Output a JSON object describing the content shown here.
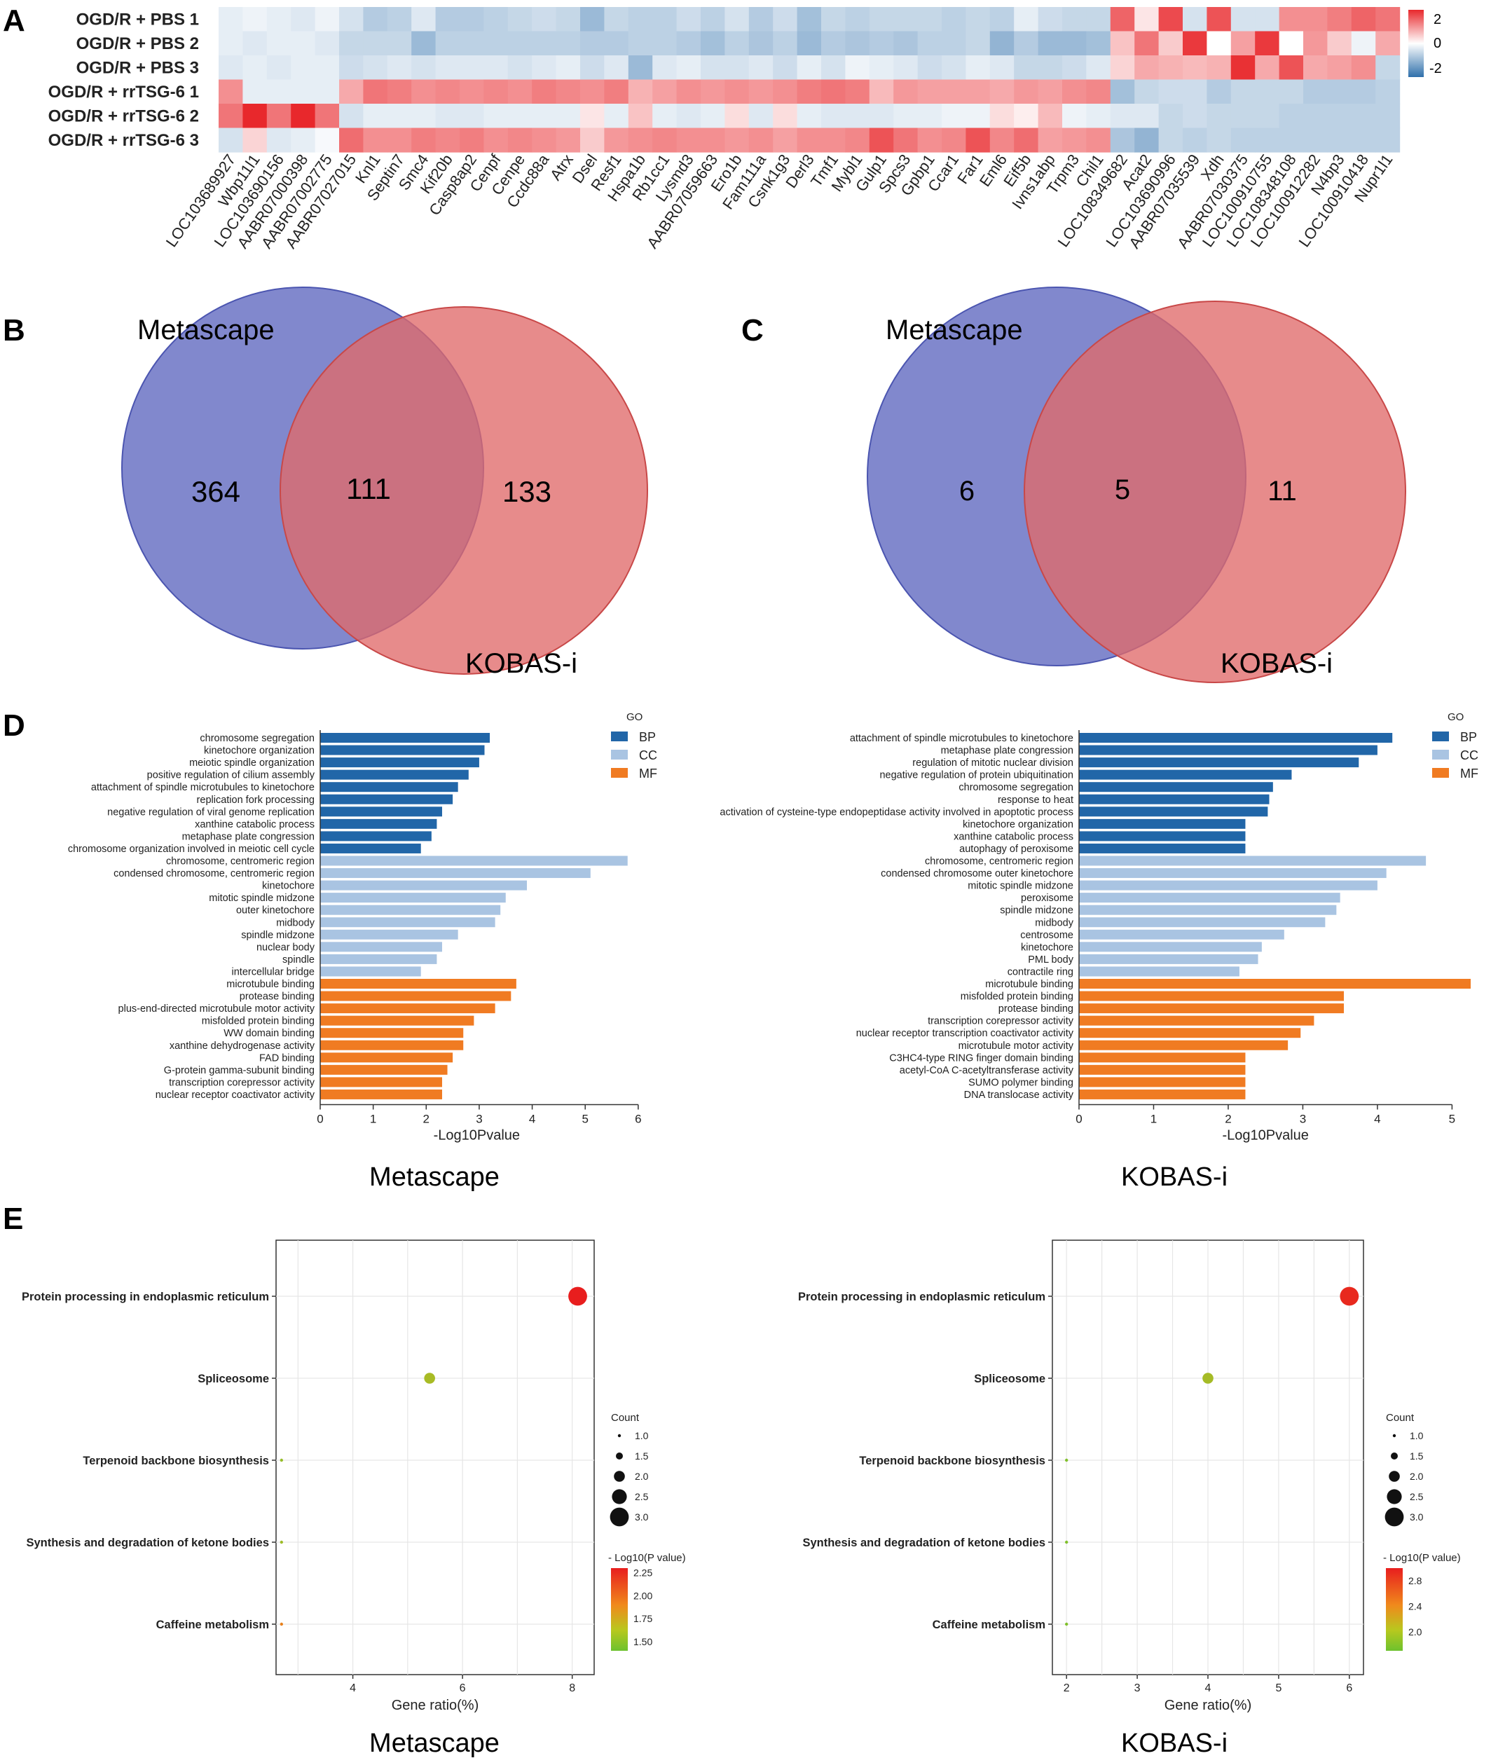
{
  "panels": {
    "A": "A",
    "B": "B",
    "C": "C",
    "D": "D",
    "E": "E"
  },
  "colors": {
    "heat_low": "#2f6fab",
    "heat_mid": "#ffffff",
    "heat_high": "#e8282c",
    "venn_blue": "#6f78c6",
    "venn_red": "#e47878",
    "venn_overlap": "#a44a6c",
    "bp": "#2166a8",
    "cc": "#a9c4e2",
    "mf": "#f07b22"
  },
  "chart_data": [
    {
      "type": "heatmap",
      "rows": [
        "OGD/R + PBS 1",
        "OGD/R + PBS 2",
        "OGD/R + PBS 3",
        "OGD/R + rrTSG-6 1",
        "OGD/R + rrTSG-6 2",
        "OGD/R + rrTSG-6 3"
      ],
      "columns": [
        "LOC103689927",
        "Wbp11l1",
        "LOC103690156",
        "AABR07000398",
        "AABR07002775",
        "AABR07027015",
        "Knl1",
        "Septin7",
        "Smc4",
        "Kif20b",
        "Casp8ap2",
        "Cenpf",
        "Cenpe",
        "Ccdc88a",
        "Atrx",
        "Dsel",
        "Resf1",
        "Hspa1b",
        "Rb1cc1",
        "Lysmd3",
        "AABR07059663",
        "Ero1b",
        "Fam111a",
        "Csnk1g3",
        "Derl3",
        "Tmf1",
        "Mybl1",
        "Gulp1",
        "Spcs3",
        "Gpbp1",
        "Ccar1",
        "Far1",
        "Eml6",
        "Eif5b",
        "Ivns1abp",
        "Trpm3",
        "Chil1",
        "LOC108349682",
        "Acat2",
        "LOC103690996",
        "AABR07035539",
        "Xdh",
        "AABR07030375",
        "LOC100910755",
        "LOC108348108",
        "LOC100912282",
        "N4bp3",
        "LOC100910418",
        "Nupr1l1"
      ],
      "values": [
        [
          -0.3,
          -0.2,
          -0.3,
          -0.4,
          -0.2,
          -0.5,
          -0.9,
          -0.8,
          -0.4,
          -0.9,
          -0.9,
          -0.8,
          -0.7,
          -0.6,
          -0.7,
          -1.2,
          -0.7,
          -0.8,
          -0.8,
          -0.6,
          -0.8,
          -0.5,
          -0.9,
          -0.6,
          -1.1,
          -0.7,
          -0.8,
          -0.7,
          -0.7,
          -0.7,
          -0.8,
          -0.7,
          -0.8,
          -0.3,
          -0.6,
          -0.7,
          -0.7,
          1.8,
          0.3,
          2.1,
          -0.5,
          2.0,
          -0.5,
          -0.5,
          1.3,
          1.3,
          1.5,
          1.8,
          1.6
        ],
        [
          -0.3,
          -0.4,
          -0.3,
          -0.3,
          -0.4,
          -0.7,
          -0.7,
          -0.7,
          -1.2,
          -0.8,
          -0.8,
          -0.8,
          -0.8,
          -0.8,
          -0.8,
          -0.9,
          -0.9,
          -0.8,
          -0.8,
          -0.9,
          -1.1,
          -0.8,
          -1.0,
          -0.8,
          -1.2,
          -0.9,
          -1.0,
          -0.9,
          -1.0,
          -0.8,
          -0.8,
          -0.7,
          -1.3,
          -0.9,
          -1.2,
          -1.2,
          -1.1,
          0.7,
          1.6,
          0.6,
          2.3,
          0.0,
          1.1,
          2.3,
          0.0,
          1.2,
          0.6,
          -0.2,
          1.0
        ],
        [
          -0.4,
          -0.3,
          -0.4,
          -0.3,
          -0.3,
          -0.6,
          -0.5,
          -0.4,
          -0.5,
          -0.4,
          -0.4,
          -0.4,
          -0.5,
          -0.4,
          -0.3,
          -0.6,
          -0.4,
          -1.2,
          -0.4,
          -0.3,
          -0.5,
          -0.5,
          -0.4,
          -0.6,
          -0.3,
          -0.5,
          -0.2,
          -0.3,
          -0.4,
          -0.6,
          -0.5,
          -0.3,
          -0.4,
          -0.7,
          -0.7,
          -0.6,
          -0.4,
          0.5,
          1.0,
          0.9,
          0.8,
          0.9,
          2.4,
          1.0,
          2.0,
          1.0,
          1.1,
          1.3,
          -0.7
        ],
        [
          1.3,
          -0.3,
          -0.3,
          -0.3,
          -0.3,
          1.0,
          1.6,
          1.5,
          1.3,
          1.4,
          1.3,
          1.4,
          1.3,
          1.5,
          1.4,
          1.3,
          1.5,
          0.9,
          1.1,
          1.3,
          1.2,
          1.3,
          1.2,
          1.3,
          1.5,
          1.6,
          1.5,
          0.8,
          1.2,
          1.1,
          1.1,
          1.1,
          1.0,
          1.2,
          1.1,
          1.3,
          1.4,
          -1.1,
          -0.7,
          -0.6,
          -0.6,
          -0.9,
          -0.7,
          -0.7,
          -0.7,
          -0.9,
          -0.9,
          -0.9,
          -0.8
        ],
        [
          1.6,
          2.6,
          1.6,
          2.6,
          1.6,
          -0.5,
          -0.3,
          -0.3,
          -0.3,
          -0.4,
          -0.4,
          -0.3,
          -0.3,
          -0.3,
          -0.3,
          0.3,
          -0.3,
          0.7,
          -0.3,
          -0.4,
          -0.3,
          0.4,
          -0.4,
          0.4,
          -0.3,
          -0.4,
          -0.4,
          -0.4,
          -0.3,
          -0.3,
          -0.2,
          -0.2,
          0.4,
          0.2,
          0.8,
          -0.2,
          -0.3,
          -0.4,
          -0.4,
          -0.7,
          -0.6,
          -0.7,
          -0.7,
          -0.7,
          -0.8,
          -0.8,
          -0.8,
          -0.8,
          -0.8
        ],
        [
          -0.5,
          0.5,
          -0.4,
          -0.3,
          -0.1,
          1.7,
          1.3,
          1.3,
          1.5,
          1.4,
          1.5,
          1.3,
          1.4,
          1.3,
          1.2,
          0.6,
          1.2,
          1.3,
          1.4,
          1.3,
          1.3,
          1.2,
          1.3,
          1.1,
          1.3,
          1.3,
          1.4,
          2.0,
          1.6,
          1.3,
          1.4,
          2.0,
          1.4,
          1.7,
          1.1,
          1.2,
          1.3,
          -1.0,
          -1.3,
          -0.7,
          -0.8,
          -0.7,
          -0.8,
          -0.8,
          -0.8,
          -0.8,
          -0.8,
          -0.8,
          -0.8
        ]
      ],
      "legend_ticks": [
        "2",
        "0",
        "-2"
      ]
    },
    {
      "type": "venn",
      "set_a": "Metascape",
      "set_b": "KOBAS-i",
      "only_a": "364",
      "both": "111",
      "only_b": "133"
    },
    {
      "type": "venn",
      "set_a": "Metascape",
      "set_b": "KOBAS-i",
      "only_a": "6",
      "both": "5",
      "only_b": "11"
    },
    {
      "type": "bar",
      "orientation": "horizontal",
      "caption": "Metascape",
      "xlabel": "-Log10Pvalue",
      "xlim": [
        0,
        6.2
      ],
      "xticks": [
        "0",
        "1",
        "2",
        "3",
        "4",
        "5",
        "6"
      ],
      "legend_title": "GO",
      "legend": [
        "BP",
        "CC",
        "MF"
      ],
      "bars": [
        {
          "label": "chromosome segregation",
          "value": 3.2,
          "group": "BP"
        },
        {
          "label": "kinetochore organization",
          "value": 3.1,
          "group": "BP"
        },
        {
          "label": "meiotic spindle organization",
          "value": 3.0,
          "group": "BP"
        },
        {
          "label": "positive regulation of cilium assembly",
          "value": 2.8,
          "group": "BP"
        },
        {
          "label": "attachment of spindle microtubules to kinetochore",
          "value": 2.6,
          "group": "BP"
        },
        {
          "label": "replication fork processing",
          "value": 2.5,
          "group": "BP"
        },
        {
          "label": "negative regulation of viral genome replication",
          "value": 2.3,
          "group": "BP"
        },
        {
          "label": "xanthine catabolic process",
          "value": 2.2,
          "group": "BP"
        },
        {
          "label": "metaphase plate congression",
          "value": 2.1,
          "group": "BP"
        },
        {
          "label": "chromosome organization involved in meiotic cell cycle",
          "value": 1.9,
          "group": "BP"
        },
        {
          "label": "chromosome, centromeric region",
          "value": 5.8,
          "group": "CC"
        },
        {
          "label": "condensed chromosome, centromeric region",
          "value": 5.1,
          "group": "CC"
        },
        {
          "label": "kinetochore",
          "value": 3.9,
          "group": "CC"
        },
        {
          "label": "mitotic spindle midzone",
          "value": 3.5,
          "group": "CC"
        },
        {
          "label": "outer kinetochore",
          "value": 3.4,
          "group": "CC"
        },
        {
          "label": "midbody",
          "value": 3.3,
          "group": "CC"
        },
        {
          "label": "spindle midzone",
          "value": 2.6,
          "group": "CC"
        },
        {
          "label": "nuclear body",
          "value": 2.3,
          "group": "CC"
        },
        {
          "label": "spindle",
          "value": 2.2,
          "group": "CC"
        },
        {
          "label": "intercellular bridge",
          "value": 1.9,
          "group": "CC"
        },
        {
          "label": "microtubule binding",
          "value": 3.7,
          "group": "MF"
        },
        {
          "label": "protease binding",
          "value": 3.6,
          "group": "MF"
        },
        {
          "label": "plus-end-directed microtubule motor activity",
          "value": 3.3,
          "group": "MF"
        },
        {
          "label": "misfolded protein binding",
          "value": 2.9,
          "group": "MF"
        },
        {
          "label": "WW domain binding",
          "value": 2.7,
          "group": "MF"
        },
        {
          "label": "xanthine dehydrogenase activity",
          "value": 2.7,
          "group": "MF"
        },
        {
          "label": "FAD binding",
          "value": 2.5,
          "group": "MF"
        },
        {
          "label": "G-protein gamma-subunit binding",
          "value": 2.4,
          "group": "MF"
        },
        {
          "label": "transcription corepressor activity",
          "value": 2.3,
          "group": "MF"
        },
        {
          "label": "nuclear receptor coactivator activity",
          "value": 2.3,
          "group": "MF"
        }
      ]
    },
    {
      "type": "bar",
      "orientation": "horizontal",
      "caption": "KOBAS-i",
      "xlabel": "-Log10Pvalue",
      "xlim": [
        0,
        5.25
      ],
      "xticks": [
        "0",
        "1",
        "2",
        "3",
        "4",
        "5"
      ],
      "legend_title": "GO",
      "legend": [
        "BP",
        "CC",
        "MF"
      ],
      "bars": [
        {
          "label": "attachment of spindle microtubules to kinetochore",
          "value": 4.2,
          "group": "BP"
        },
        {
          "label": "metaphase plate congression",
          "value": 4.0,
          "group": "BP"
        },
        {
          "label": "regulation of mitotic nuclear division",
          "value": 3.75,
          "group": "BP"
        },
        {
          "label": "negative regulation of protein ubiquitination",
          "value": 2.85,
          "group": "BP"
        },
        {
          "label": "chromosome segregation",
          "value": 2.6,
          "group": "BP"
        },
        {
          "label": "response to heat",
          "value": 2.55,
          "group": "BP"
        },
        {
          "label": "activation of cysteine-type endopeptidase activity involved in apoptotic process",
          "value": 2.53,
          "group": "BP"
        },
        {
          "label": "kinetochore organization",
          "value": 2.23,
          "group": "BP"
        },
        {
          "label": "xanthine catabolic process",
          "value": 2.23,
          "group": "BP"
        },
        {
          "label": "autophagy of peroxisome",
          "value": 2.23,
          "group": "BP"
        },
        {
          "label": "chromosome, centromeric region",
          "value": 4.65,
          "group": "CC"
        },
        {
          "label": "condensed chromosome outer kinetochore",
          "value": 4.12,
          "group": "CC"
        },
        {
          "label": "mitotic spindle midzone",
          "value": 4.0,
          "group": "CC"
        },
        {
          "label": "peroxisome",
          "value": 3.5,
          "group": "CC"
        },
        {
          "label": "spindle midzone",
          "value": 3.45,
          "group": "CC"
        },
        {
          "label": "midbody",
          "value": 3.3,
          "group": "CC"
        },
        {
          "label": "centrosome",
          "value": 2.75,
          "group": "CC"
        },
        {
          "label": "kinetochore",
          "value": 2.45,
          "group": "CC"
        },
        {
          "label": "PML body",
          "value": 2.4,
          "group": "CC"
        },
        {
          "label": "contractile ring",
          "value": 2.15,
          "group": "CC"
        },
        {
          "label": "microtubule binding",
          "value": 5.25,
          "group": "MF"
        },
        {
          "label": "misfolded protein binding",
          "value": 3.55,
          "group": "MF"
        },
        {
          "label": "protease binding",
          "value": 3.55,
          "group": "MF"
        },
        {
          "label": "transcription corepressor activity",
          "value": 3.15,
          "group": "MF"
        },
        {
          "label": "nuclear receptor transcription coactivator activity",
          "value": 2.97,
          "group": "MF"
        },
        {
          "label": "microtubule motor activity",
          "value": 2.8,
          "group": "MF"
        },
        {
          "label": "C3HC4-type RING finger domain binding",
          "value": 2.23,
          "group": "MF"
        },
        {
          "label": "acetyl-CoA C-acetyltransferase activity",
          "value": 2.23,
          "group": "MF"
        },
        {
          "label": "SUMO polymer binding",
          "value": 2.23,
          "group": "MF"
        },
        {
          "label": "DNA translocase activity",
          "value": 2.23,
          "group": "MF"
        }
      ]
    },
    {
      "type": "scatter",
      "caption": "Metascape",
      "xlabel": "Gene ratio(%)",
      "xlim": [
        2.6,
        8.4
      ],
      "xticks": [
        4,
        6,
        8
      ],
      "categories": [
        "Protein processing in endoplasmic reticulum",
        "Spliceosome",
        "Terpenoid backbone biosynthesis",
        "Synthesis and degradation of ketone bodies",
        "Caffeine metabolism"
      ],
      "points": [
        {
          "category": "Protein processing in endoplasmic reticulum",
          "x": 8.1,
          "count": 3,
          "neglog10p": 2.3
        },
        {
          "category": "Spliceosome",
          "x": 5.4,
          "count": 2,
          "neglog10p": 1.62
        },
        {
          "category": "Terpenoid backbone biosynthesis",
          "x": 2.7,
          "count": 1,
          "neglog10p": 1.55
        },
        {
          "category": "Synthesis and degradation of ketone bodies",
          "x": 2.7,
          "count": 1,
          "neglog10p": 1.58
        },
        {
          "category": "Caffeine metabolism",
          "x": 2.7,
          "count": 1,
          "neglog10p": 2.0
        }
      ],
      "size_legend_title": "Count",
      "size_legend": [
        "1.0",
        "1.5",
        "2.0",
        "2.5",
        "3.0"
      ],
      "color_legend_title": "- Log10(P value)",
      "color_legend": [
        "2.25",
        "2.00",
        "1.75",
        "1.50"
      ],
      "color_range": [
        1.4,
        2.3
      ]
    },
    {
      "type": "scatter",
      "caption": "KOBAS-i",
      "xlabel": "Gene ratio(%)",
      "xlim": [
        1.8,
        6.2
      ],
      "xticks": [
        2,
        3,
        4,
        5,
        6
      ],
      "categories": [
        "Protein processing in endoplasmic reticulum",
        "Spliceosome",
        "Terpenoid backbone biosynthesis",
        "Synthesis and degradation of ketone bodies",
        "Caffeine metabolism"
      ],
      "points": [
        {
          "category": "Protein processing in endoplasmic reticulum",
          "x": 6.0,
          "count": 3,
          "neglog10p": 2.95
        },
        {
          "category": "Spliceosome",
          "x": 4.0,
          "count": 2,
          "neglog10p": 2.0
        },
        {
          "category": "Terpenoid backbone biosynthesis",
          "x": 2.0,
          "count": 1,
          "neglog10p": 1.8
        },
        {
          "category": "Synthesis and degradation of ketone bodies",
          "x": 2.0,
          "count": 1,
          "neglog10p": 1.8
        },
        {
          "category": "Caffeine metabolism",
          "x": 2.0,
          "count": 1,
          "neglog10p": 1.8
        }
      ],
      "size_legend_title": "Count",
      "size_legend": [
        "1.0",
        "1.5",
        "2.0",
        "2.5",
        "3.0"
      ],
      "color_legend_title": "- Log10(P value)",
      "color_legend": [
        "2.8",
        "2.4",
        "2.0"
      ],
      "color_range": [
        1.7,
        3.0
      ]
    }
  ]
}
